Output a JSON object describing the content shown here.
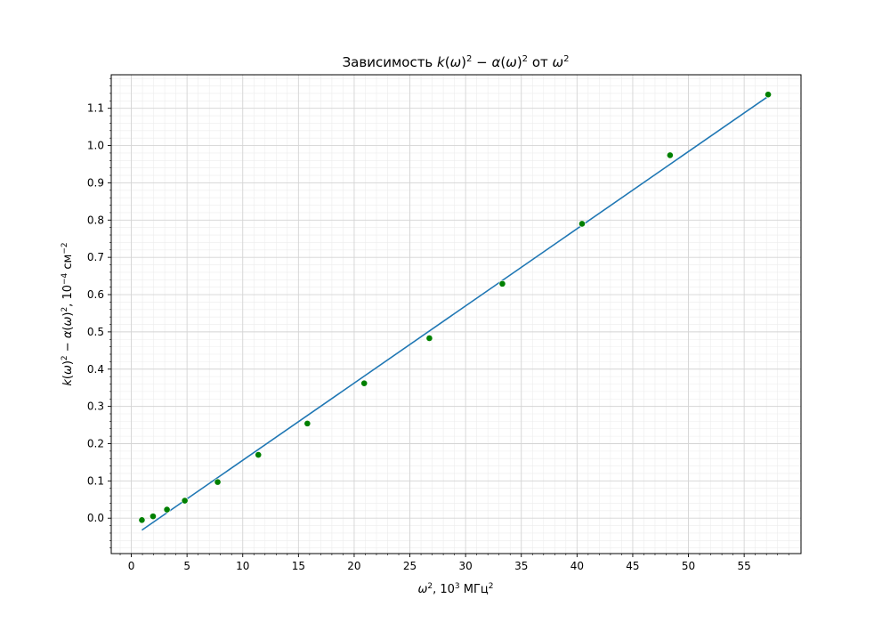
{
  "chart_data": {
    "type": "scatter",
    "title": "Зависимость k(ω)² − α(ω)² от ω²",
    "title_parts": {
      "prefix": "Зависимость ",
      "k": "k",
      "omega": "ω",
      "alpha": "α",
      "exp": "2",
      "minus": " − ",
      "ot": " от "
    },
    "xlabel": "ω², 10³ МГц²",
    "xlabel_parts": {
      "omega": "ω",
      "exp": "2",
      "unit": ", 10",
      "unit_exp": "3",
      "unit_tail": " МГц",
      "unit_tail_exp": "2"
    },
    "ylabel": "k(ω)² − α(ω)², 10⁻⁴ см⁻²",
    "ylabel_parts": {
      "k": "k",
      "omega": "ω",
      "alpha": "α",
      "exp": "2",
      "minus": " − ",
      "unit": ", 10",
      "unit_exp": "−4",
      "unit_tail": " см",
      "unit_tail_exp": "−2"
    },
    "xlim": [
      -1.8,
      60.1
    ],
    "ylim": [
      -0.095,
      1.19
    ],
    "xticks": [
      0,
      5,
      10,
      15,
      20,
      25,
      30,
      35,
      40,
      45,
      50,
      55
    ],
    "yticks": [
      0.0,
      0.1,
      0.2,
      0.3,
      0.4,
      0.5,
      0.6,
      0.7,
      0.8,
      0.9,
      1.0,
      1.1
    ],
    "ytick_labels": [
      "0.0",
      "0.1",
      "0.2",
      "0.3",
      "0.4",
      "0.5",
      "0.6",
      "0.7",
      "0.8",
      "0.9",
      "1.0",
      "1.1"
    ],
    "grid": true,
    "series": [
      {
        "kind": "scatter",
        "color": "#008000",
        "x": [
          0.95,
          1.95,
          3.2,
          4.8,
          7.75,
          11.4,
          15.8,
          20.9,
          26.75,
          33.3,
          40.45,
          48.35,
          57.15
        ],
        "y": [
          -0.005,
          0.005,
          0.023,
          0.047,
          0.097,
          0.17,
          0.254,
          0.362,
          0.483,
          0.629,
          0.79,
          0.974,
          1.137
        ]
      },
      {
        "kind": "line",
        "color": "#1f77b4",
        "x": [
          0.95,
          57.15
        ],
        "y": [
          -0.032,
          1.132
        ]
      }
    ]
  }
}
